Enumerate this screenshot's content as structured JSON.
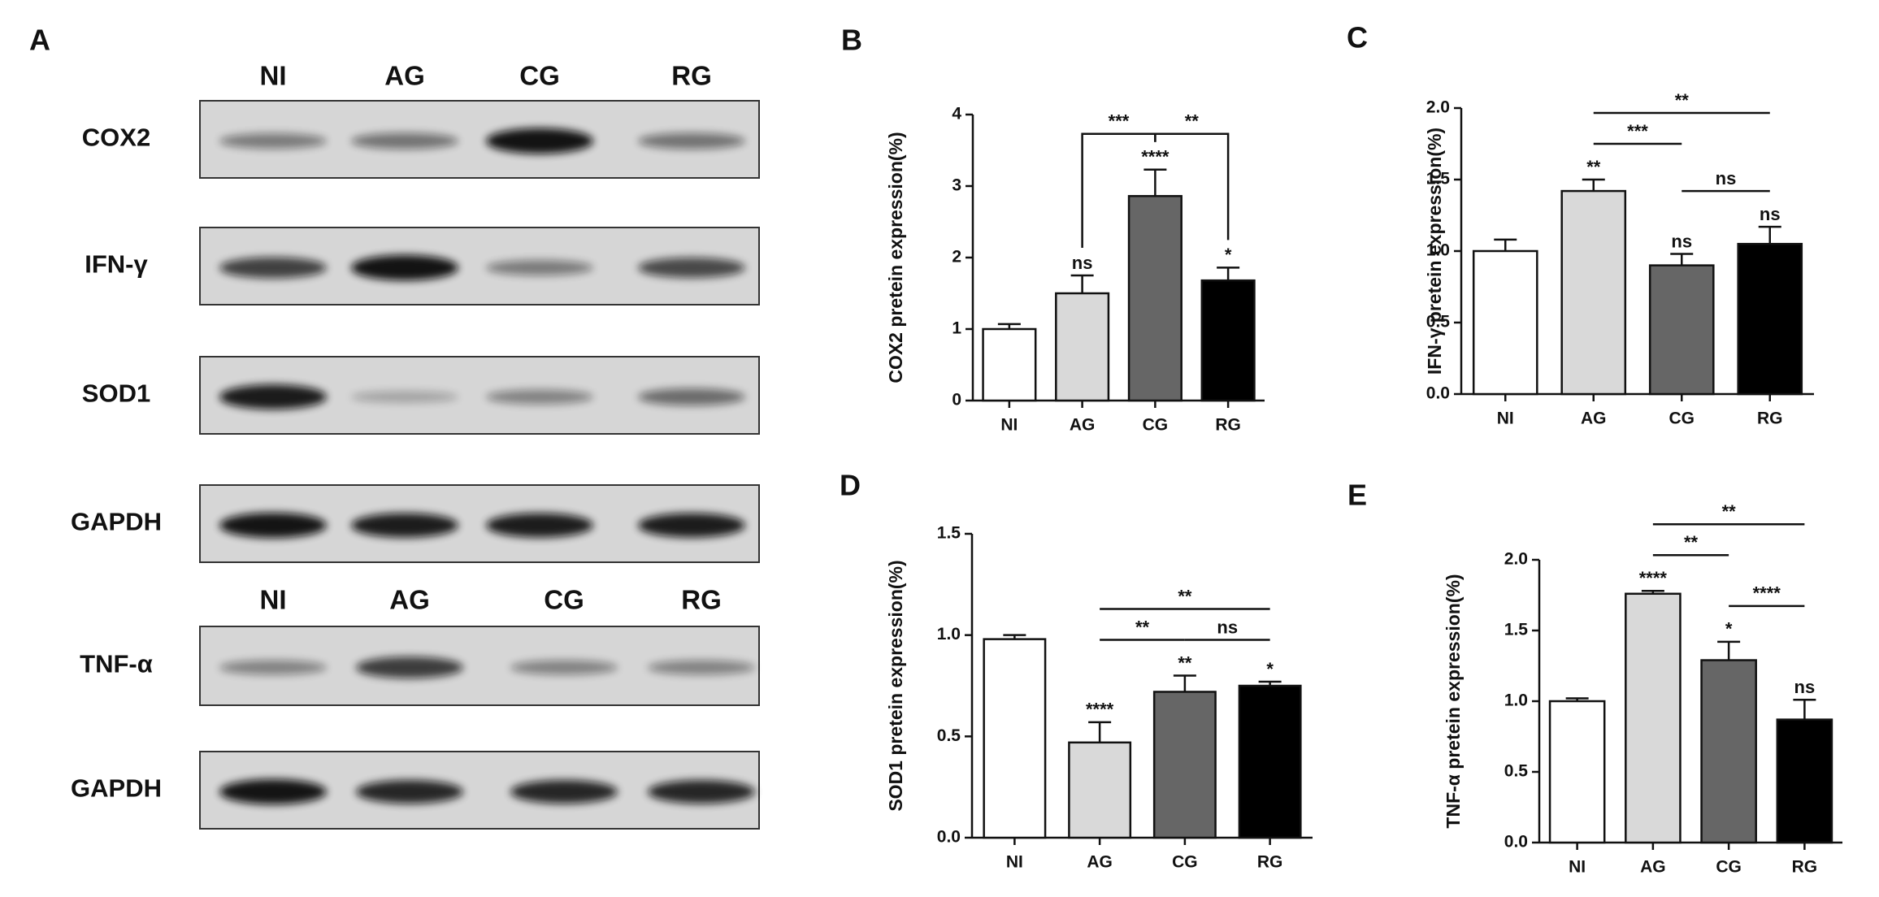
{
  "panel_a": {
    "label": "A",
    "lanes_top": [
      "NI",
      "AG",
      "CG",
      "RG"
    ],
    "lanes_bottom": [
      "NI",
      "AG",
      "CG",
      "RG"
    ],
    "rows": [
      "COX2",
      "IFN-γ",
      "SOD1",
      "GAPDH",
      "TNF-α",
      "GAPDH"
    ]
  },
  "chart_data": [
    {
      "type": "bar",
      "panel": "B",
      "y_label": "COX2 pretein expression(%)",
      "categories": [
        "NI",
        "AG",
        "CG",
        "RG"
      ],
      "values": [
        1.0,
        1.5,
        2.86,
        1.68
      ],
      "errors": [
        0.07,
        0.25,
        0.37,
        0.18
      ],
      "colors": [
        "#ffffff",
        "#d9d9d9",
        "#666666",
        "#000000"
      ],
      "bar_labels": [
        null,
        "ns",
        "****",
        "*"
      ],
      "ylim": [
        0,
        4
      ],
      "yticks": [
        0,
        1,
        2,
        3,
        4
      ],
      "bracket_style": "legs",
      "brackets": [
        {
          "between": [
            "AG",
            "CG"
          ],
          "label": "***"
        },
        {
          "between": [
            "CG",
            "RG"
          ],
          "label": "**"
        }
      ]
    },
    {
      "type": "bar",
      "panel": "C",
      "y_label": "IFN-γ pretein expression(%)",
      "categories": [
        "NI",
        "AG",
        "CG",
        "RG"
      ],
      "values": [
        1.0,
        1.42,
        0.9,
        1.05
      ],
      "errors": [
        0.08,
        0.08,
        0.08,
        0.12
      ],
      "colors": [
        "#ffffff",
        "#d9d9d9",
        "#666666",
        "#000000"
      ],
      "bar_labels": [
        null,
        "**",
        "ns",
        "ns"
      ],
      "ylim": [
        0,
        2
      ],
      "yticks": [
        {
          "value": 0,
          "label": "0.0"
        },
        {
          "value": 0.5,
          "label": "0.5"
        },
        {
          "value": 1,
          "label": "1.0"
        },
        {
          "value": 1.5,
          "label": "1.5"
        },
        {
          "value": 2,
          "label": "2.0"
        }
      ],
      "bracket_style": "line",
      "brackets": [
        {
          "between": [
            "CG",
            "RG"
          ],
          "label": "ns"
        },
        {
          "between": [
            "AG",
            "CG"
          ],
          "label": "***"
        },
        {
          "between": [
            "AG",
            "RG"
          ],
          "label": "**"
        }
      ]
    },
    {
      "type": "bar",
      "panel": "D",
      "y_label": "SOD1 pretein expression(%)",
      "categories": [
        "NI",
        "AG",
        "CG",
        "RG"
      ],
      "values": [
        0.98,
        0.47,
        0.72,
        0.75
      ],
      "errors": [
        0.02,
        0.1,
        0.08,
        0.02
      ],
      "colors": [
        "#ffffff",
        "#d9d9d9",
        "#666666",
        "#000000"
      ],
      "bar_labels": [
        null,
        "****",
        "**",
        "*"
      ],
      "ylim": [
        0,
        1.5
      ],
      "yticks": [
        {
          "value": 0,
          "label": "0.0"
        },
        {
          "value": 0.5,
          "label": "0.5"
        },
        {
          "value": 1,
          "label": "1.0"
        },
        {
          "value": 1.5,
          "label": "1.5"
        }
      ],
      "bracket_style": "line",
      "brackets": [
        {
          "between": [
            "AG",
            "CG"
          ],
          "label": "**"
        },
        {
          "between": [
            "CG",
            "RG"
          ],
          "label": "ns"
        },
        {
          "between": [
            "AG",
            "RG"
          ],
          "label": "**"
        }
      ]
    },
    {
      "type": "bar",
      "panel": "E",
      "y_label": "TNF-α pretein expression(%)",
      "categories": [
        "NI",
        "AG",
        "CG",
        "RG"
      ],
      "values": [
        1.0,
        1.76,
        1.29,
        0.87
      ],
      "errors": [
        0.02,
        0.02,
        0.13,
        0.14
      ],
      "colors": [
        "#ffffff",
        "#d9d9d9",
        "#666666",
        "#000000"
      ],
      "bar_labels": [
        null,
        "****",
        "*",
        "ns"
      ],
      "ylim": [
        0,
        2
      ],
      "yticks": [
        {
          "value": 0,
          "label": "0.0"
        },
        {
          "value": 0.5,
          "label": "0.5"
        },
        {
          "value": 1,
          "label": "1.0"
        },
        {
          "value": 1.5,
          "label": "1.5"
        },
        {
          "value": 2,
          "label": "2.0"
        }
      ],
      "bracket_style": "line",
      "brackets": [
        {
          "between": [
            "CG",
            "RG"
          ],
          "label": "****"
        },
        {
          "between": [
            "AG",
            "CG"
          ],
          "label": "**"
        },
        {
          "between": [
            "AG",
            "RG"
          ],
          "label": "**"
        }
      ]
    }
  ]
}
